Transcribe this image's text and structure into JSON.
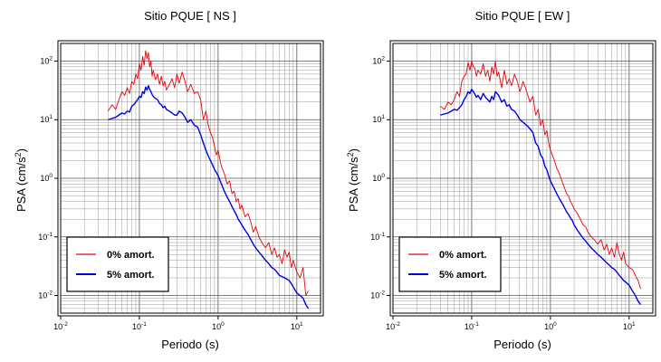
{
  "chart_data": [
    {
      "type": "line",
      "title": "Sitio PQUE [ NS ]",
      "xlabel": "Periodo (s)",
      "ylabel_prefix": "PSA (cm/s",
      "ylabel_sup": "2",
      "ylabel_suffix": ")",
      "x_scale": "log",
      "y_scale": "log",
      "xlim": [
        0.01,
        20
      ],
      "ylim": [
        0.005,
        200
      ],
      "x_ticks": [
        {
          "value": 0.01,
          "base": "10",
          "exp": "-2"
        },
        {
          "value": 0.1,
          "base": "10",
          "exp": "-1"
        },
        {
          "value": 1,
          "base": "10",
          "exp": "0"
        },
        {
          "value": 10,
          "base": "10",
          "exp": "1"
        }
      ],
      "y_ticks": [
        {
          "value": 0.01,
          "base": "10",
          "exp": "-2"
        },
        {
          "value": 0.1,
          "base": "10",
          "exp": "-1"
        },
        {
          "value": 1,
          "base": "10",
          "exp": "0"
        },
        {
          "value": 10,
          "base": "10",
          "exp": "1"
        },
        {
          "value": 100,
          "base": "10",
          "exp": "2"
        }
      ],
      "grid": true,
      "legend_position": "bottom-left",
      "series": [
        {
          "name": "0% amort.",
          "color": "#e8000b",
          "x": [
            0.04,
            0.045,
            0.05,
            0.055,
            0.06,
            0.065,
            0.07,
            0.075,
            0.08,
            0.085,
            0.09,
            0.095,
            0.1,
            0.105,
            0.11,
            0.115,
            0.12,
            0.125,
            0.13,
            0.135,
            0.14,
            0.145,
            0.15,
            0.16,
            0.17,
            0.18,
            0.19,
            0.2,
            0.21,
            0.22,
            0.24,
            0.26,
            0.28,
            0.3,
            0.32,
            0.35,
            0.38,
            0.41,
            0.45,
            0.5,
            0.55,
            0.6,
            0.65,
            0.7,
            0.75,
            0.8,
            0.85,
            0.9,
            0.95,
            1.0,
            1.1,
            1.2,
            1.3,
            1.4,
            1.5,
            1.6,
            1.7,
            1.8,
            1.9,
            2.0,
            2.2,
            2.4,
            2.6,
            2.8,
            3.0,
            3.3,
            3.6,
            4.0,
            4.4,
            4.8,
            5.2,
            5.6,
            6.0,
            6.5,
            7.0,
            7.5,
            8.0,
            8.5,
            9.0,
            10.0,
            11.0,
            12.0,
            13.0,
            14.0
          ],
          "y": [
            14,
            18,
            15,
            22,
            30,
            26,
            35,
            28,
            45,
            40,
            60,
            50,
            90,
            70,
            120,
            85,
            150,
            110,
            140,
            80,
            100,
            55,
            70,
            48,
            60,
            40,
            55,
            38,
            45,
            32,
            40,
            50,
            35,
            60,
            42,
            65,
            45,
            30,
            40,
            28,
            30,
            22,
            10,
            14,
            8,
            6,
            5,
            3.5,
            2.5,
            3.0,
            1.6,
            1.2,
            0.8,
            0.9,
            0.55,
            0.6,
            0.4,
            0.45,
            0.3,
            0.35,
            0.22,
            0.25,
            0.18,
            0.12,
            0.15,
            0.1,
            0.08,
            0.065,
            0.08,
            0.05,
            0.065,
            0.045,
            0.05,
            0.035,
            0.06,
            0.045,
            0.055,
            0.03,
            0.04,
            0.025,
            0.02,
            0.03,
            0.01,
            0.012
          ]
        },
        {
          "name": "5% amort.",
          "color": "#0000e6",
          "x": [
            0.04,
            0.045,
            0.05,
            0.055,
            0.06,
            0.065,
            0.07,
            0.075,
            0.08,
            0.085,
            0.09,
            0.095,
            0.1,
            0.105,
            0.11,
            0.115,
            0.12,
            0.125,
            0.13,
            0.135,
            0.14,
            0.145,
            0.15,
            0.16,
            0.17,
            0.18,
            0.19,
            0.2,
            0.21,
            0.22,
            0.24,
            0.26,
            0.28,
            0.3,
            0.32,
            0.35,
            0.38,
            0.41,
            0.45,
            0.5,
            0.55,
            0.6,
            0.65,
            0.7,
            0.75,
            0.8,
            0.85,
            0.9,
            0.95,
            1.0,
            1.1,
            1.2,
            1.3,
            1.4,
            1.5,
            1.6,
            1.7,
            1.8,
            1.9,
            2.0,
            2.2,
            2.4,
            2.6,
            2.8,
            3.0,
            3.3,
            3.6,
            4.0,
            4.4,
            4.8,
            5.2,
            5.6,
            6.0,
            6.5,
            7.0,
            7.5,
            8.0,
            8.5,
            9.0,
            10.0,
            11.0,
            12.0,
            13.0,
            14.0
          ],
          "y": [
            10,
            10.5,
            11,
            12,
            13,
            12.5,
            14,
            13.5,
            17,
            18,
            20,
            22,
            25,
            24,
            30,
            28,
            36,
            32,
            38,
            33,
            30,
            27,
            25,
            23,
            22,
            19,
            18,
            16,
            17,
            15,
            14,
            13,
            12,
            12,
            14,
            13,
            11,
            9,
            10,
            8,
            7.5,
            5.5,
            4,
            3,
            2.4,
            2.0,
            1.7,
            1.4,
            1.25,
            1.1,
            0.8,
            0.6,
            0.48,
            0.4,
            0.33,
            0.28,
            0.24,
            0.2,
            0.18,
            0.16,
            0.13,
            0.11,
            0.09,
            0.075,
            0.065,
            0.055,
            0.048,
            0.04,
            0.035,
            0.03,
            0.028,
            0.025,
            0.022,
            0.021,
            0.02,
            0.019,
            0.018,
            0.016,
            0.014,
            0.011,
            0.01,
            0.009,
            0.007,
            0.006
          ]
        }
      ]
    },
    {
      "type": "line",
      "title": "Sitio PQUE [ EW ]",
      "xlabel": "Periodo (s)",
      "ylabel_prefix": "PSA (cm/s",
      "ylabel_sup": "2",
      "ylabel_suffix": ")",
      "x_scale": "log",
      "y_scale": "log",
      "xlim": [
        0.01,
        20
      ],
      "ylim": [
        0.005,
        200
      ],
      "x_ticks": [
        {
          "value": 0.01,
          "base": "10",
          "exp": "-2"
        },
        {
          "value": 0.1,
          "base": "10",
          "exp": "-1"
        },
        {
          "value": 1,
          "base": "10",
          "exp": "0"
        },
        {
          "value": 10,
          "base": "10",
          "exp": "1"
        }
      ],
      "y_ticks": [
        {
          "value": 0.01,
          "base": "10",
          "exp": "-2"
        },
        {
          "value": 0.1,
          "base": "10",
          "exp": "-1"
        },
        {
          "value": 1,
          "base": "10",
          "exp": "0"
        },
        {
          "value": 10,
          "base": "10",
          "exp": "1"
        },
        {
          "value": 100,
          "base": "10",
          "exp": "2"
        }
      ],
      "grid": true,
      "legend_position": "bottom-left",
      "series": [
        {
          "name": "0% amort.",
          "color": "#e8000b",
          "x": [
            0.04,
            0.045,
            0.05,
            0.055,
            0.06,
            0.065,
            0.07,
            0.075,
            0.08,
            0.085,
            0.09,
            0.095,
            0.1,
            0.105,
            0.11,
            0.115,
            0.12,
            0.13,
            0.14,
            0.15,
            0.16,
            0.17,
            0.18,
            0.19,
            0.2,
            0.21,
            0.22,
            0.24,
            0.26,
            0.28,
            0.3,
            0.32,
            0.35,
            0.38,
            0.41,
            0.45,
            0.5,
            0.55,
            0.6,
            0.65,
            0.7,
            0.75,
            0.8,
            0.85,
            0.9,
            0.95,
            1.0,
            1.1,
            1.2,
            1.3,
            1.4,
            1.5,
            1.6,
            1.7,
            1.8,
            1.9,
            2.0,
            2.2,
            2.4,
            2.6,
            2.8,
            3.0,
            3.3,
            3.6,
            4.0,
            4.4,
            4.8,
            5.2,
            5.6,
            6.0,
            6.5,
            7.0,
            7.5,
            8.0,
            8.5,
            9.0,
            10.0,
            11.0,
            12.0,
            13.0,
            14.0
          ],
          "y": [
            17,
            15,
            20,
            18,
            22,
            30,
            25,
            45,
            55,
            60,
            95,
            70,
            100,
            80,
            75,
            55,
            70,
            60,
            90,
            55,
            70,
            45,
            80,
            60,
            100,
            55,
            65,
            35,
            70,
            40,
            50,
            38,
            60,
            45,
            30,
            45,
            30,
            20,
            25,
            12,
            15,
            8,
            10,
            5.5,
            6.5,
            4,
            3,
            2.2,
            1.5,
            1.2,
            0.9,
            0.7,
            0.55,
            0.5,
            0.4,
            0.35,
            0.3,
            0.25,
            0.2,
            0.16,
            0.15,
            0.12,
            0.1,
            0.09,
            0.075,
            0.09,
            0.06,
            0.075,
            0.05,
            0.065,
            0.045,
            0.08,
            0.05,
            0.04,
            0.055,
            0.035,
            0.03,
            0.028,
            0.022,
            0.018,
            0.013
          ]
        },
        {
          "name": "5% amort.",
          "color": "#0000e6",
          "x": [
            0.04,
            0.045,
            0.05,
            0.055,
            0.06,
            0.065,
            0.07,
            0.075,
            0.08,
            0.085,
            0.09,
            0.095,
            0.1,
            0.105,
            0.11,
            0.115,
            0.12,
            0.13,
            0.14,
            0.15,
            0.16,
            0.17,
            0.18,
            0.19,
            0.2,
            0.21,
            0.22,
            0.24,
            0.26,
            0.28,
            0.3,
            0.32,
            0.35,
            0.38,
            0.41,
            0.45,
            0.5,
            0.55,
            0.6,
            0.65,
            0.7,
            0.75,
            0.8,
            0.85,
            0.9,
            0.95,
            1.0,
            1.1,
            1.2,
            1.3,
            1.4,
            1.5,
            1.6,
            1.7,
            1.8,
            1.9,
            2.0,
            2.2,
            2.4,
            2.6,
            2.8,
            3.0,
            3.3,
            3.6,
            4.0,
            4.4,
            4.8,
            5.2,
            5.6,
            6.0,
            6.5,
            7.0,
            7.5,
            8.0,
            8.5,
            9.0,
            10.0,
            11.0,
            12.0,
            13.0,
            14.0
          ],
          "y": [
            12,
            12.5,
            13,
            14,
            15,
            14.5,
            16,
            18,
            22,
            25,
            30,
            28,
            33,
            30,
            27,
            24,
            26,
            22,
            28,
            24,
            22,
            20,
            25,
            22,
            30,
            28,
            26,
            20,
            22,
            17,
            18,
            15,
            14,
            12,
            10,
            9,
            8,
            7,
            6,
            4,
            3.5,
            2.5,
            2.2,
            1.6,
            1.4,
            1.1,
            0.9,
            0.7,
            0.55,
            0.45,
            0.38,
            0.32,
            0.27,
            0.24,
            0.21,
            0.19,
            0.16,
            0.13,
            0.11,
            0.095,
            0.085,
            0.075,
            0.065,
            0.058,
            0.05,
            0.045,
            0.04,
            0.036,
            0.033,
            0.03,
            0.028,
            0.025,
            0.022,
            0.02,
            0.018,
            0.017,
            0.015,
            0.012,
            0.01,
            0.008,
            0.007
          ]
        }
      ]
    }
  ]
}
